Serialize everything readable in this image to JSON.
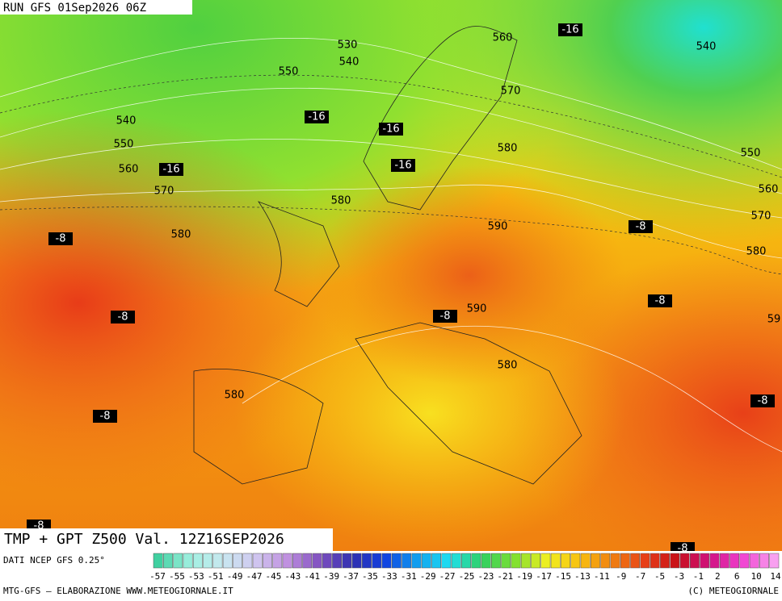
{
  "header": {
    "run": "RUN GFS 01Sep2026 06Z"
  },
  "map": {
    "contour_labels": [
      530,
      540,
      560,
      550,
      570,
      540,
      550,
      560,
      570,
      580,
      580,
      580,
      590,
      590,
      580,
      580,
      540,
      550,
      560,
      570,
      580,
      59
    ],
    "temperature_labels": [
      -16,
      -16,
      -16,
      -16,
      -16,
      -8,
      -8,
      -8,
      -8,
      -8,
      -8,
      -8,
      -8,
      -8
    ]
  },
  "footer": {
    "title": "TMP + GPT Z500 Val. 12Z16SEP2026",
    "source": "DATI NCEP GFS 0.25°",
    "scale_labels": [
      -57,
      -55,
      -53,
      -51,
      -49,
      -47,
      -45,
      -43,
      -41,
      -39,
      -37,
      -35,
      -33,
      -31,
      -29,
      -27,
      -25,
      -23,
      -21,
      -19,
      -17,
      -15,
      -13,
      -11,
      -9,
      -7,
      -5,
      -3,
      -1,
      2,
      6,
      10,
      14
    ],
    "credit": "MTG-GFS – ELABORAZIONE WWW.METEOGIORNALE.IT",
    "copyright": "(C) METEOGIORNALE"
  }
}
